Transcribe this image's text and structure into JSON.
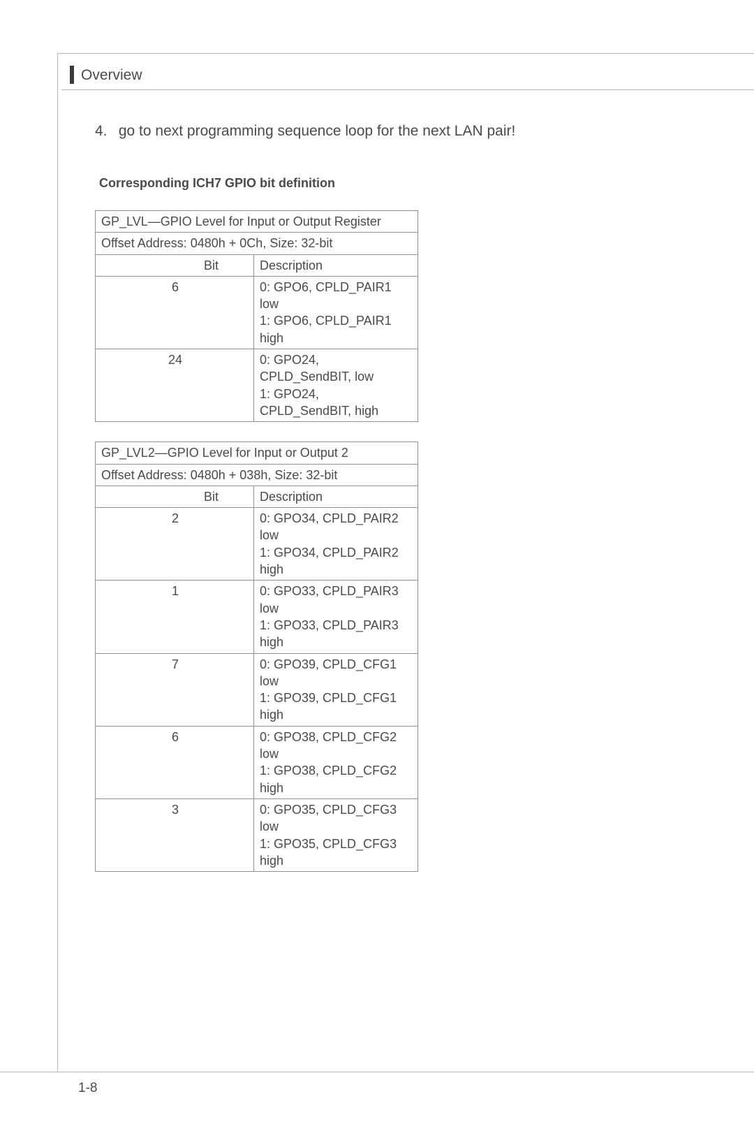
{
  "header": {
    "title": "Overview"
  },
  "step": {
    "number": "4.",
    "text": "go to next programming sequence loop for the next LAN pair!"
  },
  "subheading": "Corresponding ICH7 GPIO bit definition",
  "table1": {
    "title": "GP_LVL—GPIO Level for Input or Output Register",
    "offset": "Offset Address: 0480h + 0Ch, Size: 32-bit",
    "col_bit": "Bit",
    "col_desc": "Description",
    "rows": [
      {
        "bit": "6",
        "desc": "0: GPO6, CPLD_PAIR1 low\n1: GPO6, CPLD_PAIR1 high"
      },
      {
        "bit": "24",
        "desc": "0: GPO24, CPLD_SendBIT, low\n1: GPO24, CPLD_SendBIT, high"
      }
    ]
  },
  "table2": {
    "title": "GP_LVL2—GPIO Level for Input or Output 2",
    "offset": "Offset Address: 0480h + 038h, Size: 32-bit",
    "col_bit": "Bit",
    "col_desc": "Description",
    "rows": [
      {
        "bit": "2",
        "desc": "0: GPO34, CPLD_PAIR2 low\n1: GPO34, CPLD_PAIR2 high"
      },
      {
        "bit": "1",
        "desc": "0: GPO33, CPLD_PAIR3 low\n1: GPO33, CPLD_PAIR3 high"
      },
      {
        "bit": "7",
        "desc": "0: GPO39, CPLD_CFG1 low\n1: GPO39, CPLD_CFG1 high"
      },
      {
        "bit": "6",
        "desc": "0: GPO38, CPLD_CFG2 low\n1: GPO38, CPLD_CFG2 high"
      },
      {
        "bit": "3",
        "desc": "0: GPO35, CPLD_CFG3 low\n1: GPO35, CPLD_CFG3 high"
      }
    ]
  },
  "page_number": "1-8",
  "colors": {
    "text": "#4a4a4a",
    "frame": "#b9b9b9",
    "table_border": "#8f8f8f"
  }
}
